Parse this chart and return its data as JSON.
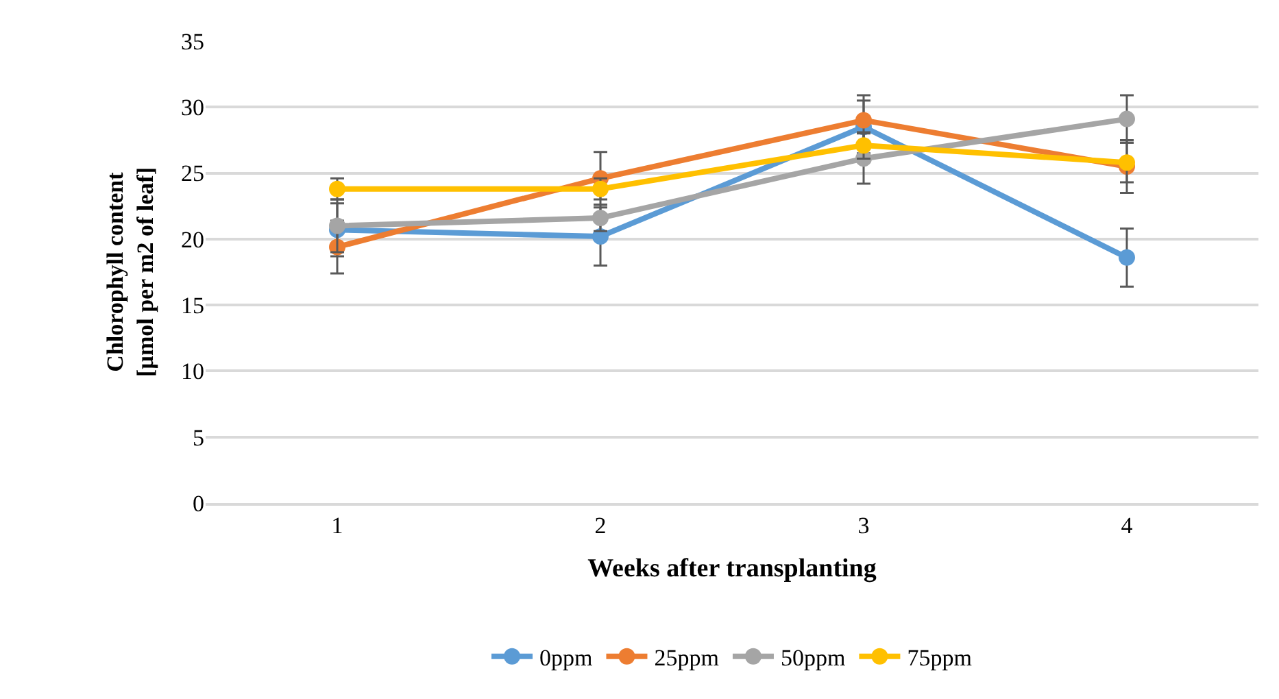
{
  "chart_data": {
    "type": "line",
    "xlabel": "Weeks after transplanting",
    "ylabel": "Chlorophyll content\n[µmol per m2 of leaf]",
    "categories": [
      "1",
      "2",
      "3",
      "4"
    ],
    "ylim": [
      0,
      35
    ],
    "yticks": [
      0,
      5,
      10,
      15,
      20,
      25,
      30,
      35
    ],
    "grid": "y",
    "legend": "bottom",
    "marker": "circle",
    "line_style": "solid",
    "series": [
      {
        "name": "0ppm",
        "color": "#5b9bd5",
        "values": [
          20.7,
          20.2,
          28.5,
          18.6
        ],
        "errors": [
          2.0,
          2.2,
          2.0,
          2.2
        ]
      },
      {
        "name": "25ppm",
        "color": "#ed7d31",
        "values": [
          19.4,
          24.6,
          29.0,
          25.5
        ],
        "errors": [
          2.0,
          2.0,
          1.9,
          2.0
        ]
      },
      {
        "name": "50ppm",
        "color": "#a5a5a5",
        "values": [
          21.0,
          21.6,
          26.1,
          29.1
        ],
        "errors": [
          2.0,
          1.0,
          1.9,
          1.8
        ]
      },
      {
        "name": "75ppm",
        "color": "#ffc000",
        "values": [
          23.8,
          23.8,
          27.1,
          25.8
        ],
        "errors": [
          0.8,
          0.8,
          1.0,
          1.5
        ]
      }
    ]
  }
}
